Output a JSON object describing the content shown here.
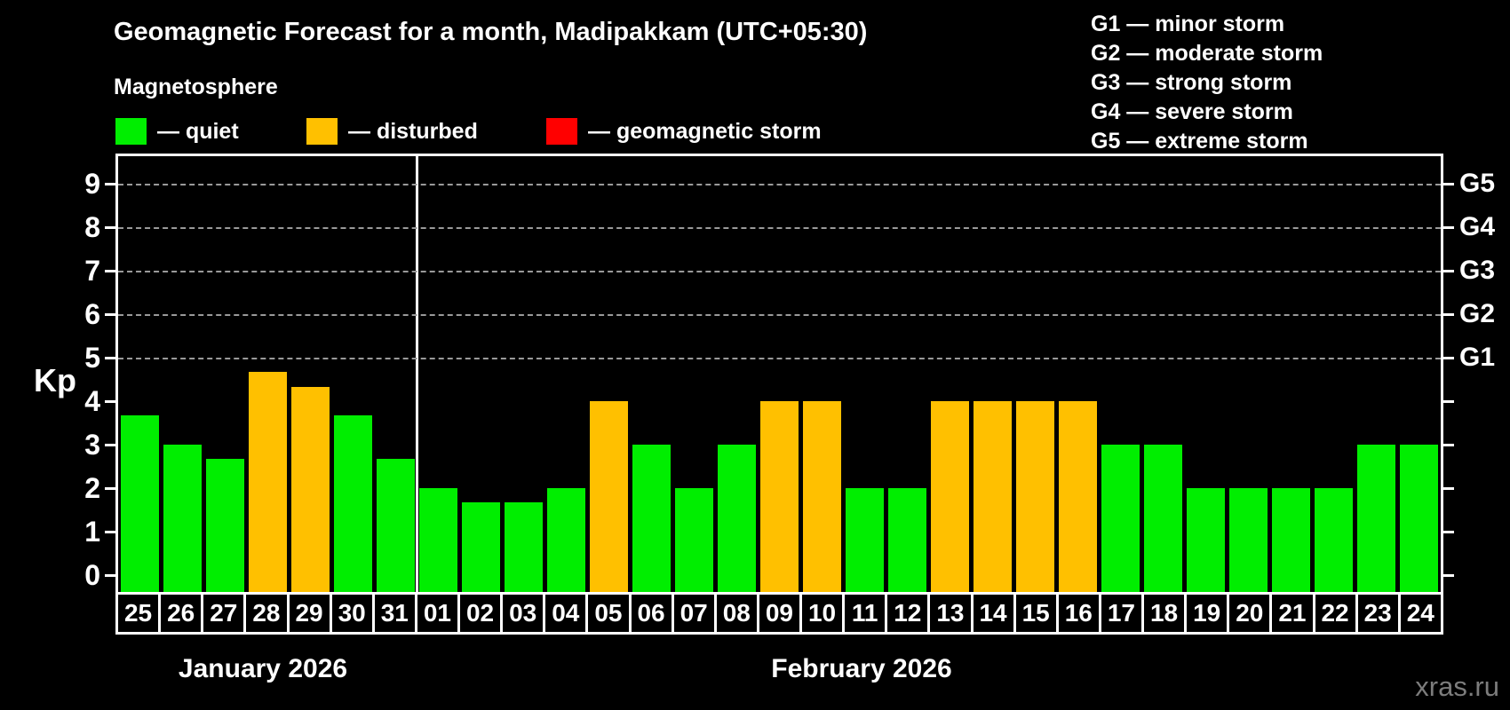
{
  "title": "Geomagnetic Forecast for a month, Madipakkam (UTC+05:30)",
  "subtitle": "Magnetosphere",
  "legend": {
    "items": [
      {
        "key": "quiet",
        "label": "— quiet",
        "color": "#00ee00"
      },
      {
        "key": "disturbed",
        "label": "— disturbed",
        "color": "#ffc000"
      },
      {
        "key": "storm",
        "label": "— geomagnetic storm",
        "color": "#ff0000"
      }
    ]
  },
  "storm_scale": {
    "items": [
      {
        "code": "G1",
        "kp": 5,
        "line": "G1 — minor storm"
      },
      {
        "code": "G2",
        "kp": 6,
        "line": "G2 — moderate storm"
      },
      {
        "code": "G3",
        "kp": 7,
        "line": "G3 — strong storm"
      },
      {
        "code": "G4",
        "kp": 8,
        "line": "G4 — severe storm"
      },
      {
        "code": "G5",
        "kp": 9,
        "line": "G5 — extreme storm"
      }
    ]
  },
  "watermark": "xras.ru",
  "chart_data": {
    "type": "bar",
    "title": "Geomagnetic Forecast for a month, Madipakkam (UTC+05:30)",
    "ylabel": "Kp",
    "ylim": [
      0,
      9
    ],
    "yticks": [
      0,
      1,
      2,
      3,
      4,
      5,
      6,
      7,
      8,
      9
    ],
    "grid_levels": [
      5,
      6,
      7,
      8,
      9
    ],
    "grid": "dashed-horizontal-at-storm-levels",
    "legend_position": "top",
    "months": [
      {
        "label": "January 2026",
        "days": 7
      },
      {
        "label": "February 2026",
        "days": 24
      }
    ],
    "categories": [
      "25",
      "26",
      "27",
      "28",
      "29",
      "30",
      "31",
      "01",
      "02",
      "03",
      "04",
      "05",
      "06",
      "07",
      "08",
      "09",
      "10",
      "11",
      "12",
      "13",
      "14",
      "15",
      "16",
      "17",
      "18",
      "19",
      "20",
      "21",
      "22",
      "23",
      "24"
    ],
    "values": [
      3.67,
      3.0,
      2.67,
      4.67,
      4.33,
      3.67,
      2.67,
      2.0,
      1.67,
      1.67,
      2.0,
      4.0,
      3.0,
      2.0,
      3.0,
      4.0,
      4.0,
      2.0,
      2.0,
      4.0,
      4.0,
      4.0,
      4.0,
      3.0,
      3.0,
      2.0,
      2.0,
      2.0,
      2.0,
      3.0,
      3.0
    ],
    "status": [
      "quiet",
      "quiet",
      "quiet",
      "disturbed",
      "disturbed",
      "quiet",
      "quiet",
      "quiet",
      "quiet",
      "quiet",
      "quiet",
      "disturbed",
      "quiet",
      "quiet",
      "quiet",
      "disturbed",
      "disturbed",
      "quiet",
      "quiet",
      "disturbed",
      "disturbed",
      "disturbed",
      "disturbed",
      "quiet",
      "quiet",
      "quiet",
      "quiet",
      "quiet",
      "quiet",
      "quiet",
      "quiet"
    ],
    "colors": {
      "quiet": "#00ee00",
      "disturbed": "#ffc000",
      "storm": "#ff0000"
    }
  }
}
